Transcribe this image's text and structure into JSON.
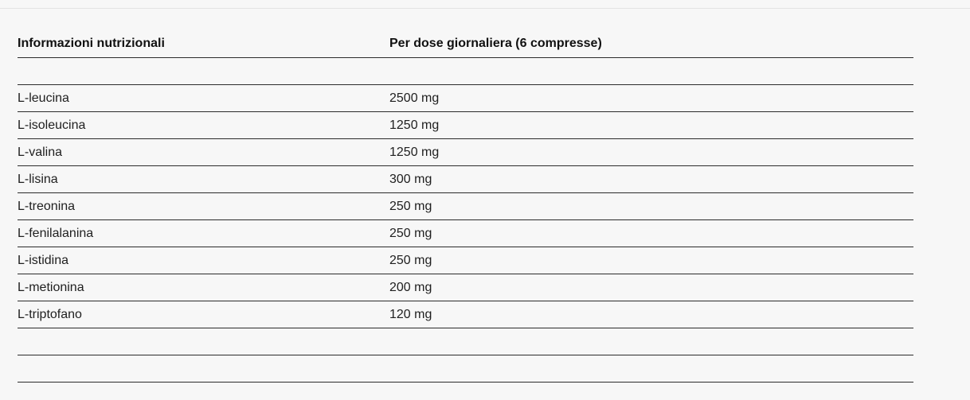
{
  "table": {
    "headers": {
      "nutrient": "Informazioni nutrizionali",
      "dose": "Per dose giornaliera (6 compresse)"
    },
    "rows": [
      {
        "nutrient": "",
        "dose": ""
      },
      {
        "nutrient": "L-leucina",
        "dose": "2500 mg"
      },
      {
        "nutrient": "L-isoleucina",
        "dose": "1250 mg"
      },
      {
        "nutrient": "L-valina",
        "dose": "1250 mg"
      },
      {
        "nutrient": "L-lisina",
        "dose": "300 mg"
      },
      {
        "nutrient": "L-treonina",
        "dose": "250 mg"
      },
      {
        "nutrient": "L-fenilalanina",
        "dose": "250 mg"
      },
      {
        "nutrient": "L-istidina",
        "dose": "250 mg"
      },
      {
        "nutrient": "L-metionina",
        "dose": "200 mg"
      },
      {
        "nutrient": "L-triptofano",
        "dose": "120 mg"
      },
      {
        "nutrient": "",
        "dose": ""
      },
      {
        "nutrient": "",
        "dose": ""
      }
    ]
  }
}
